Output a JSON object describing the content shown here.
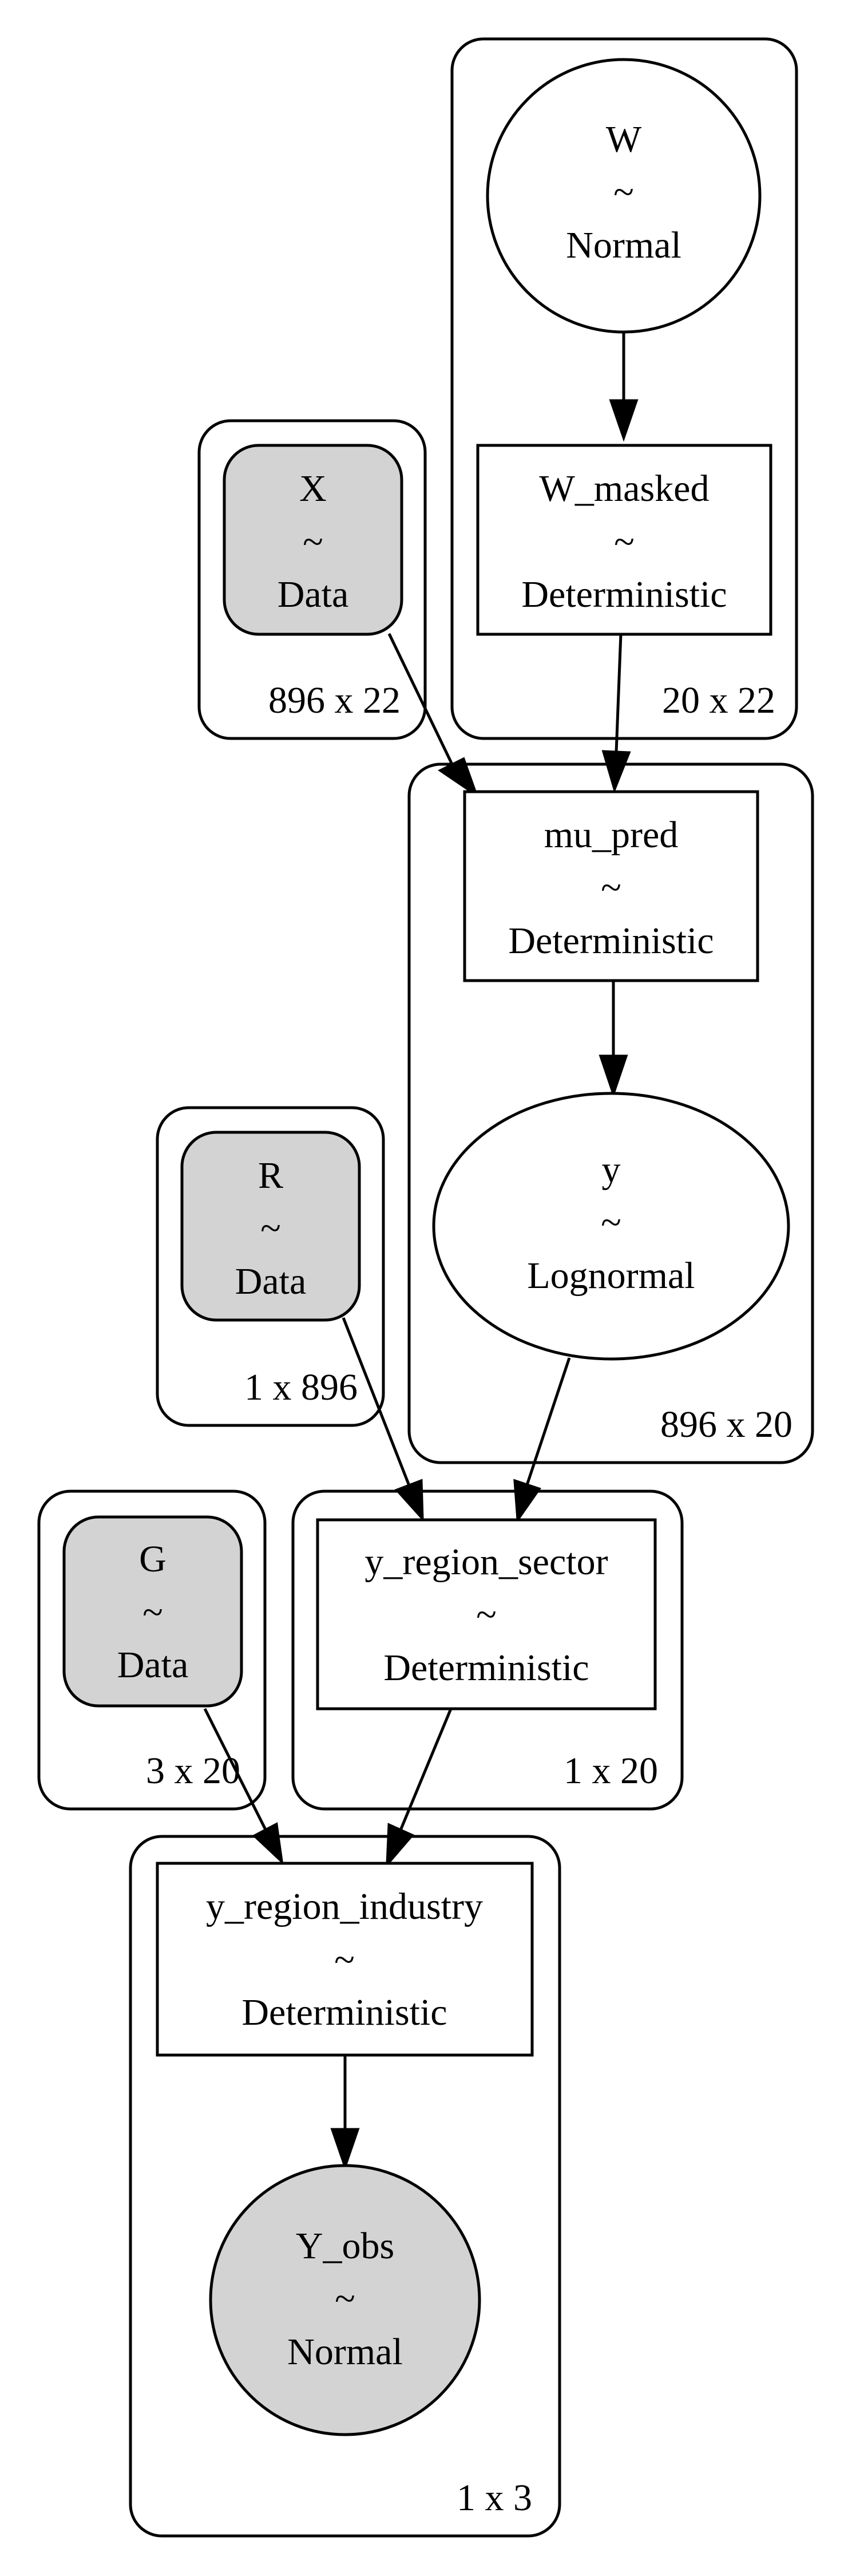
{
  "colors": {
    "observed_fill": "#d3d3d3",
    "latent_fill": "#ffffff",
    "stroke": "#000000"
  },
  "plates": {
    "w": {
      "label": "20 x 22"
    },
    "x": {
      "label": "896 x 22"
    },
    "mu": {
      "label": "896 x 20"
    },
    "r": {
      "label": "1 x 896"
    },
    "g": {
      "label": "3 x 20"
    },
    "yrs": {
      "label": "1 x 20"
    },
    "yri": {
      "label": "1 x 3"
    }
  },
  "nodes": {
    "W": {
      "name": "W",
      "tilde": "~",
      "dist": "Normal",
      "observed": false
    },
    "W_masked": {
      "name": "W_masked",
      "tilde": "~",
      "dist": "Deterministic",
      "observed": false
    },
    "X": {
      "name": "X",
      "tilde": "~",
      "dist": "Data",
      "observed": true
    },
    "mu_pred": {
      "name": "mu_pred",
      "tilde": "~",
      "dist": "Deterministic",
      "observed": false
    },
    "y": {
      "name": "y",
      "tilde": "~",
      "dist": "Lognormal",
      "observed": false
    },
    "R": {
      "name": "R",
      "tilde": "~",
      "dist": "Data",
      "observed": true
    },
    "G": {
      "name": "G",
      "tilde": "~",
      "dist": "Data",
      "observed": true
    },
    "y_region_sector": {
      "name": "y_region_sector",
      "tilde": "~",
      "dist": "Deterministic",
      "observed": false
    },
    "y_region_industry": {
      "name": "y_region_industry",
      "tilde": "~",
      "dist": "Deterministic",
      "observed": false
    },
    "Y_obs": {
      "name": "Y_obs",
      "tilde": "~",
      "dist": "Normal",
      "observed": true
    }
  },
  "edges": [
    {
      "from": "W",
      "to": "W_masked"
    },
    {
      "from": "W_masked",
      "to": "mu_pred"
    },
    {
      "from": "X",
      "to": "mu_pred"
    },
    {
      "from": "mu_pred",
      "to": "y"
    },
    {
      "from": "R",
      "to": "y_region_sector"
    },
    {
      "from": "y",
      "to": "y_region_sector"
    },
    {
      "from": "G",
      "to": "y_region_industry"
    },
    {
      "from": "y_region_sector",
      "to": "y_region_industry"
    },
    {
      "from": "y_region_industry",
      "to": "Y_obs"
    }
  ]
}
